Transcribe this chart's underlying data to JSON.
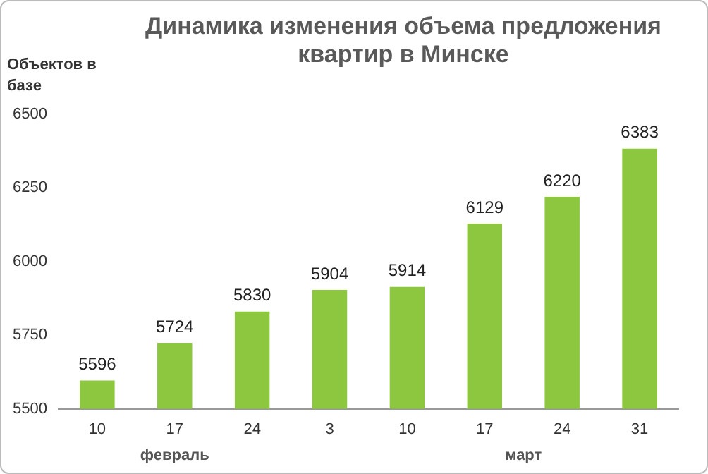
{
  "chart_data": {
    "type": "bar",
    "title": "Динамика изменения объема предложения квартир в Минске",
    "ylabel": "Объектов в базе",
    "categories": [
      "10",
      "17",
      "24",
      "3",
      "10",
      "17",
      "24",
      "31"
    ],
    "values": [
      5596,
      5724,
      5830,
      5904,
      5914,
      6129,
      6220,
      6383
    ],
    "color": "#8dc63f",
    "ylim": [
      5500,
      6500
    ],
    "yticks": [
      5500,
      5750,
      6000,
      6250,
      6500
    ],
    "grid": false,
    "legend": false,
    "data_labels": true,
    "annotations": [
      "февраль",
      "март"
    ]
  }
}
